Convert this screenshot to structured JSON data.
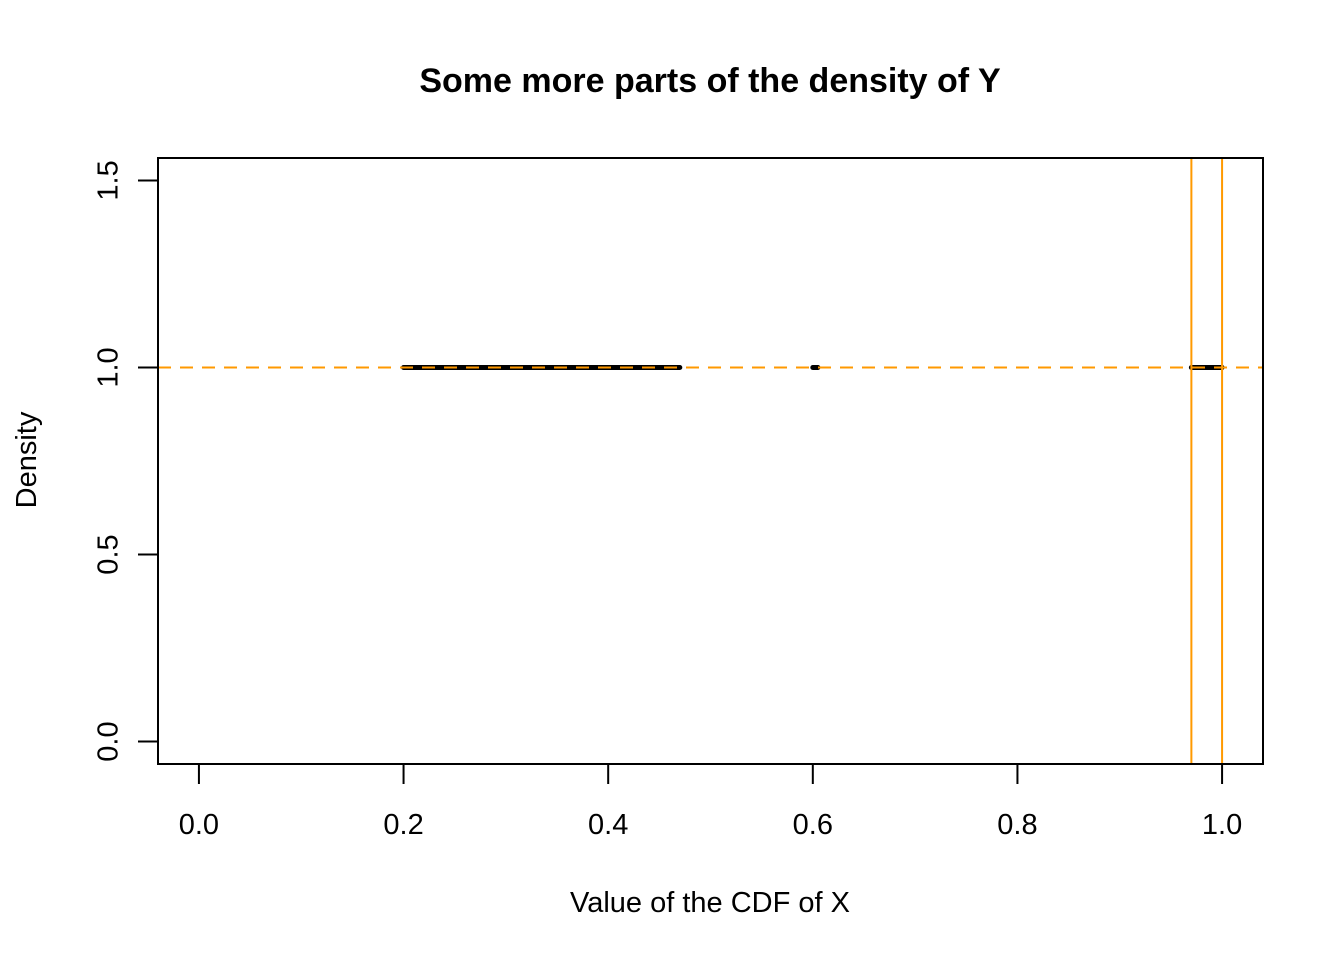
{
  "chart_data": {
    "type": "line",
    "title": "Some more parts of the density of Y",
    "xlabel": "Value of the CDF of X",
    "ylabel": "Density",
    "xlim": [
      -0.04,
      1.04
    ],
    "ylim": [
      -0.06,
      1.56
    ],
    "x_ticks": [
      0.0,
      0.2,
      0.4,
      0.6,
      0.8,
      1.0
    ],
    "x_tick_labels": [
      "0.0",
      "0.2",
      "0.4",
      "0.6",
      "0.8",
      "1.0"
    ],
    "y_ticks": [
      0.0,
      0.5,
      1.0,
      1.5
    ],
    "y_tick_labels": [
      "0.0",
      "0.5",
      "1.0",
      "1.5"
    ],
    "grid": false,
    "legend": "none",
    "series": [
      {
        "segments": [
          {
            "x": [
              0.2,
              0.47
            ],
            "y": [
              1.0,
              1.0
            ]
          },
          {
            "x": [
              0.6,
              0.605
            ],
            "y": [
              1.0,
              1.0
            ]
          },
          {
            "x": [
              0.97,
              1.0
            ],
            "y": [
              1.0,
              1.0
            ]
          }
        ],
        "color": "#000000"
      }
    ],
    "reference_lines": {
      "horizontal": [
        {
          "y": 1.0,
          "style": "dashed",
          "color": "#FF9900"
        }
      ],
      "vertical": [
        {
          "x": 0.97,
          "style": "solid",
          "color": "#FF9900"
        },
        {
          "x": 1.0,
          "style": "solid",
          "color": "#FF9900"
        }
      ]
    }
  }
}
